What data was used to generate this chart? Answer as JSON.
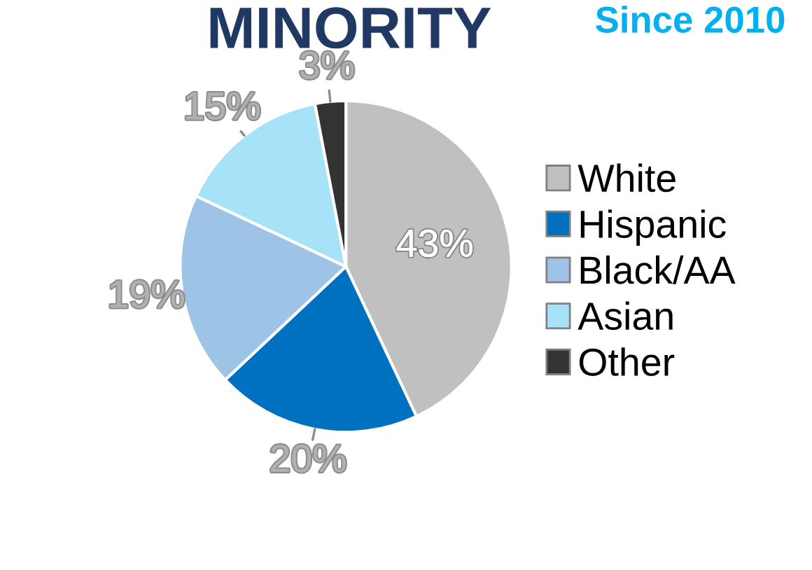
{
  "chart_data": {
    "type": "pie",
    "title": "MINORITY",
    "subtitle": "Since 2010",
    "categories": [
      "White",
      "Hispanic",
      "Black/AA",
      "Asian",
      "Other"
    ],
    "values": [
      43,
      20,
      19,
      15,
      3
    ],
    "colors": [
      "#c0c0c0",
      "#0070c0",
      "#9dc3e6",
      "#a6e3f9",
      "#333333"
    ],
    "value_labels": [
      "43%",
      "20%",
      "19%",
      "15%",
      "3%"
    ],
    "legend": "right"
  }
}
